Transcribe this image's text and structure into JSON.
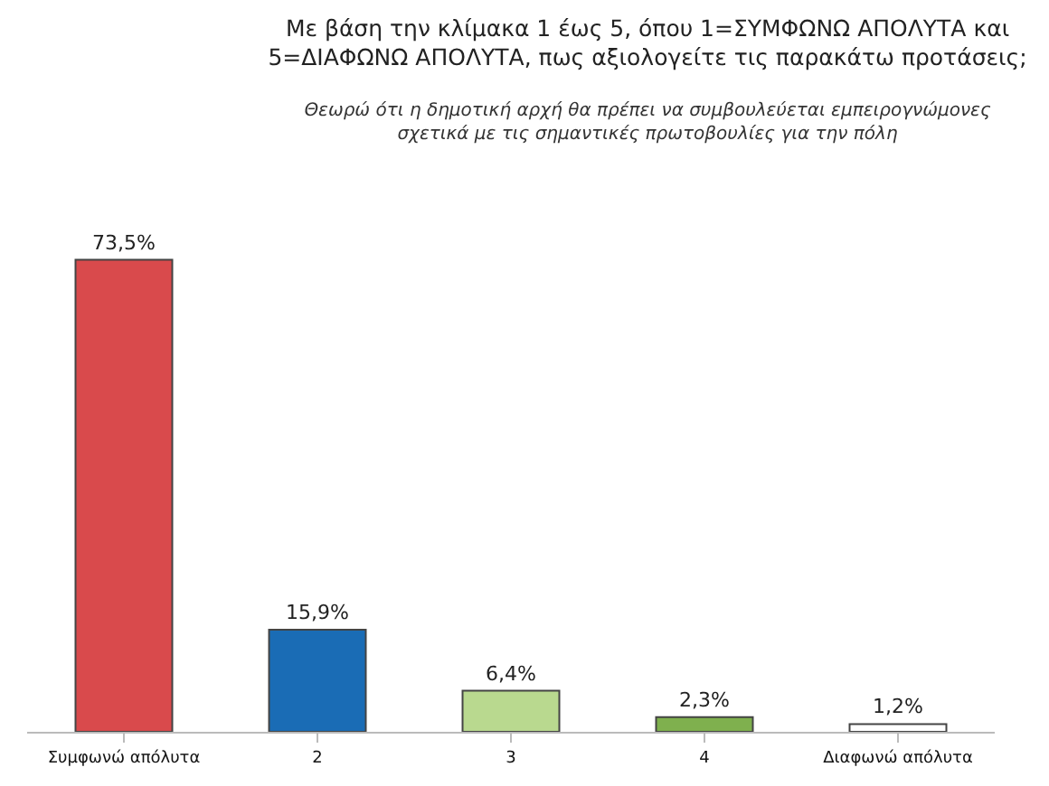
{
  "chart_data": {
    "type": "bar",
    "title": "Με βάση την κλίμακα 1 έως 5, όπου 1=ΣΥΜΦΩΝΩ ΑΠΟΛΥΤΑ και 5=ΔΙΑΦΩΝΩ ΑΠΟΛΥΤΑ, πως αξιολογείτε τις παρακάτω προτάσεις;",
    "subtitle": "Θεωρώ ότι η δημοτική αρχή θα πρέπει να συμβουλεύεται εμπειρογνώμονες σχετικά με τις σημαντικές πρωτοβουλίες για την πόλη",
    "categories": [
      "Συμφωνώ απόλυτα",
      "2",
      "3",
      "4",
      "Διαφωνώ απόλυτα"
    ],
    "values": [
      73.5,
      15.9,
      6.4,
      2.3,
      1.2
    ],
    "colors": [
      "#d94a4c",
      "#1a6cb5",
      "#b9d98f",
      "#7fb04e",
      "#ffffff"
    ],
    "value_labels": [
      "73,5%",
      "15,9%",
      "6,4%",
      "2,3%",
      "1,2%"
    ]
  }
}
